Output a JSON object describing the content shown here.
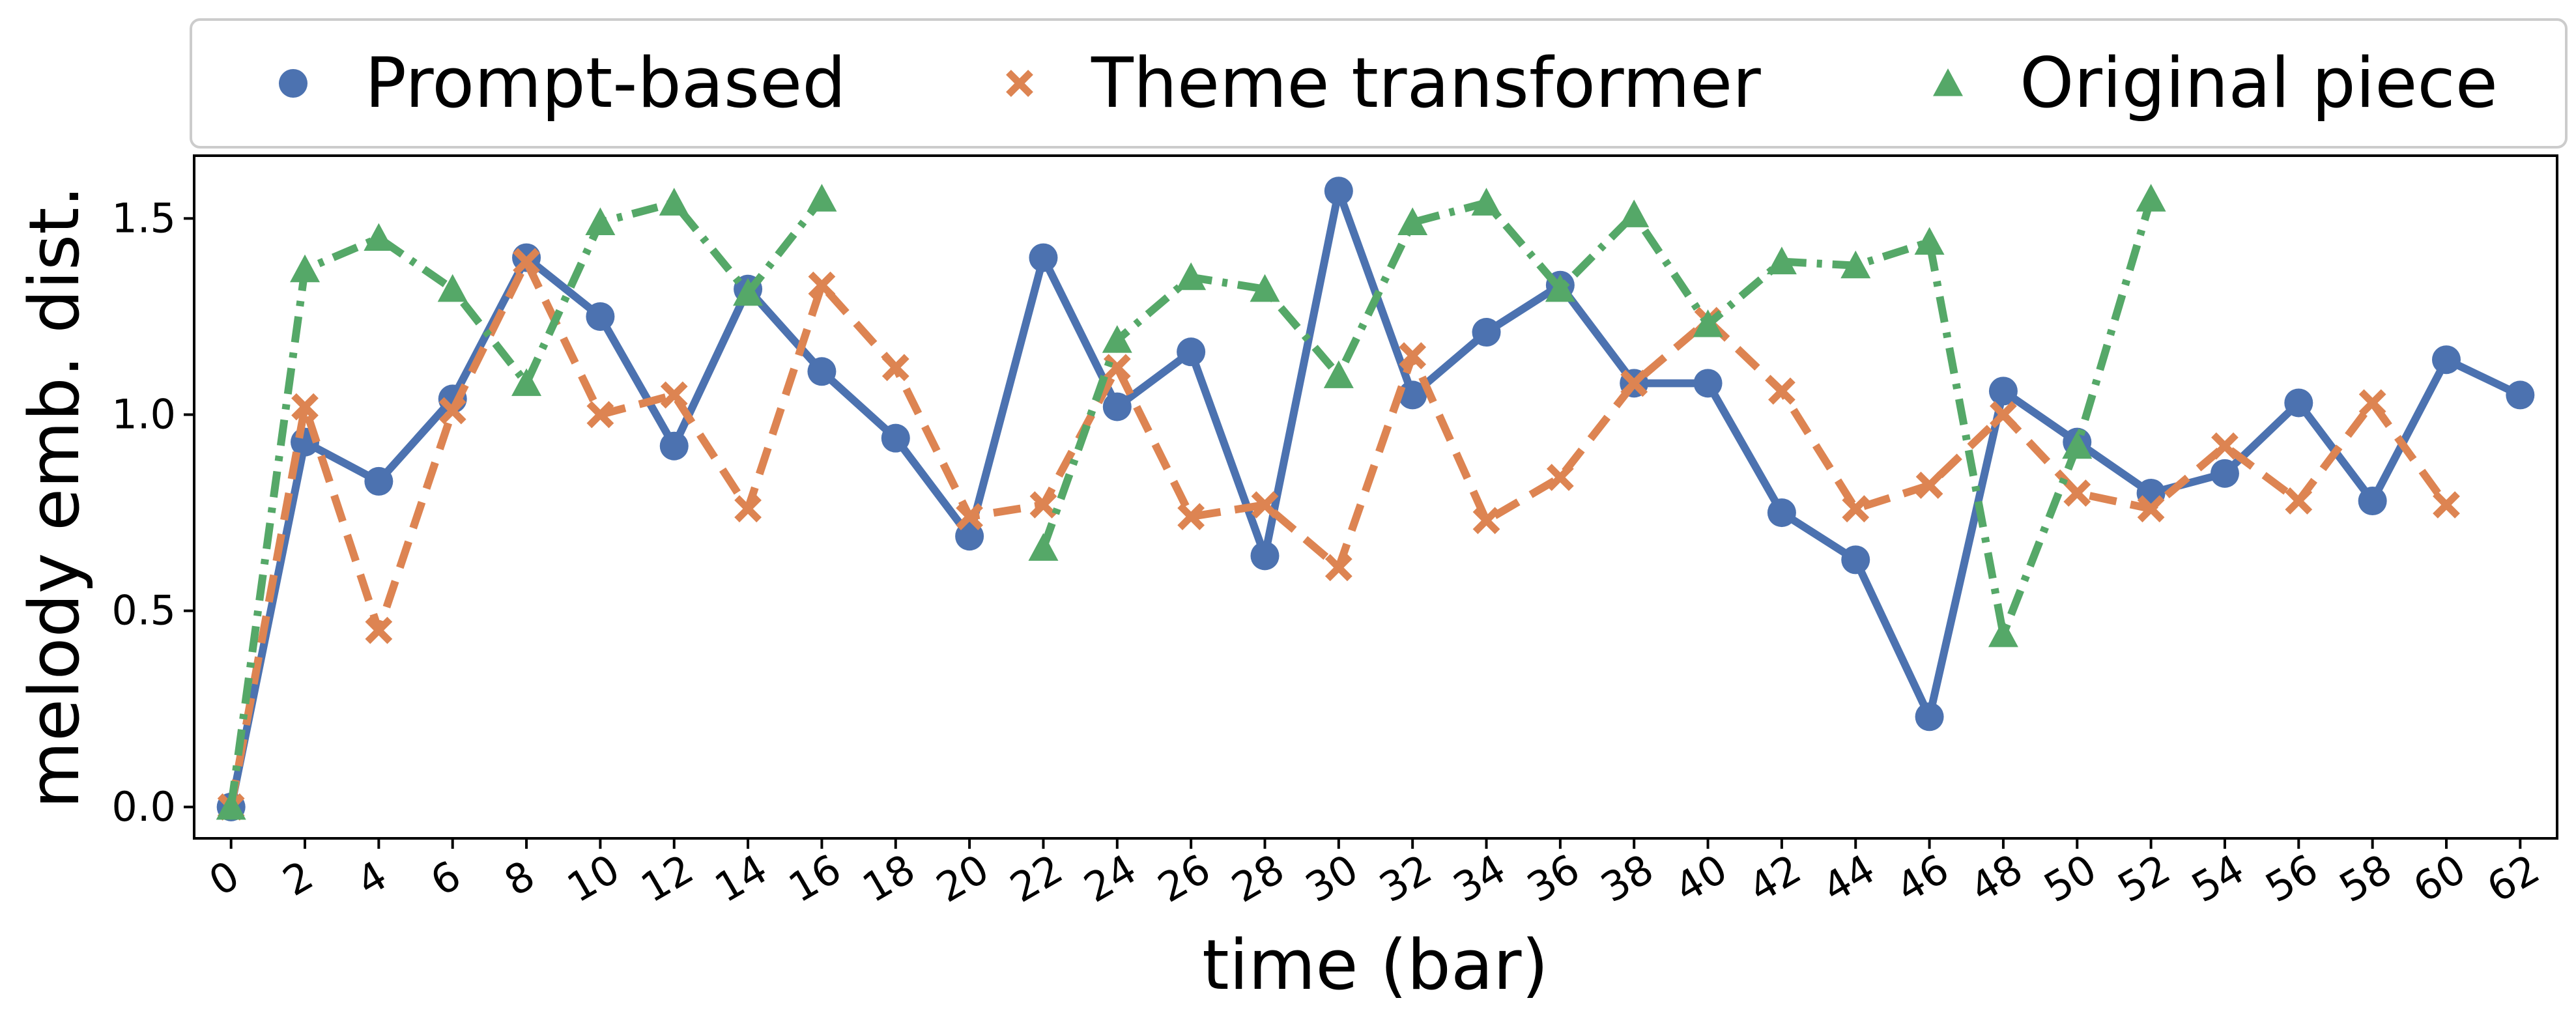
{
  "chart_data": {
    "type": "line",
    "xlabel": "time (bar)",
    "ylabel": "melody emb. dist.",
    "xlim": [
      -1,
      63
    ],
    "ylim": [
      -0.08,
      1.66
    ],
    "xticks": [
      0,
      2,
      4,
      6,
      8,
      10,
      12,
      14,
      16,
      18,
      20,
      22,
      24,
      26,
      28,
      30,
      32,
      34,
      36,
      38,
      40,
      42,
      44,
      46,
      48,
      50,
      52,
      54,
      56,
      58,
      60,
      62
    ],
    "yticks": [
      0.0,
      0.5,
      1.0,
      1.5
    ],
    "ytick_labels": [
      "0.0",
      "0.5",
      "1.0",
      "1.5"
    ],
    "grid": false,
    "legend_position": "top, outside plot area",
    "series": [
      {
        "name": "Prompt-based",
        "color": "#4c72b0",
        "marker": "circle",
        "line_style": "solid",
        "x": [
          0,
          2,
          4,
          6,
          8,
          10,
          12,
          14,
          16,
          18,
          20,
          22,
          24,
          26,
          28,
          30,
          32,
          34,
          36,
          38,
          40,
          42,
          44,
          46,
          48,
          50,
          52,
          54,
          56,
          58,
          60,
          62
        ],
        "values": [
          0.0,
          0.93,
          0.83,
          1.04,
          1.4,
          1.25,
          0.92,
          1.32,
          1.11,
          0.94,
          0.69,
          1.4,
          1.02,
          1.16,
          0.64,
          1.57,
          1.05,
          1.21,
          1.33,
          1.08,
          1.08,
          0.75,
          0.63,
          0.23,
          1.06,
          0.93,
          0.8,
          0.85,
          1.03,
          0.78,
          1.14,
          1.05
        ]
      },
      {
        "name": "Theme transformer",
        "color": "#dd8452",
        "marker": "x",
        "line_style": "dashed",
        "x": [
          0,
          2,
          4,
          6,
          8,
          10,
          12,
          14,
          16,
          18,
          20,
          22,
          24,
          26,
          28,
          30,
          32,
          34,
          36,
          38,
          40,
          42,
          44,
          46,
          48,
          50,
          52,
          54,
          56,
          58,
          60
        ],
        "values": [
          0.0,
          1.02,
          0.45,
          1.01,
          1.39,
          1.0,
          1.05,
          0.76,
          1.33,
          1.12,
          0.74,
          0.77,
          1.12,
          0.74,
          0.77,
          0.61,
          1.15,
          0.73,
          0.84,
          1.08,
          1.24,
          1.06,
          0.76,
          0.82,
          1.0,
          0.8,
          0.76,
          0.92,
          0.78,
          1.03,
          0.77
        ]
      },
      {
        "name": "Original piece",
        "color": "#55a868",
        "marker": "triangle",
        "line_style": "dashdot",
        "segments": [
          {
            "x": [
              0,
              2,
              4,
              6,
              8,
              10,
              12,
              14,
              16
            ],
            "values": [
              0.0,
              1.37,
              1.45,
              1.32,
              1.08,
              1.49,
              1.54,
              1.31,
              1.55
            ]
          },
          {
            "x": [
              22,
              24,
              26,
              28,
              30,
              32,
              34,
              36,
              38,
              40,
              42,
              44,
              46,
              48,
              50,
              52
            ],
            "values": [
              0.66,
              1.19,
              1.35,
              1.32,
              1.1,
              1.49,
              1.54,
              1.32,
              1.51,
              1.23,
              1.39,
              1.38,
              1.44,
              0.44,
              0.92,
              1.55
            ]
          }
        ]
      }
    ]
  }
}
